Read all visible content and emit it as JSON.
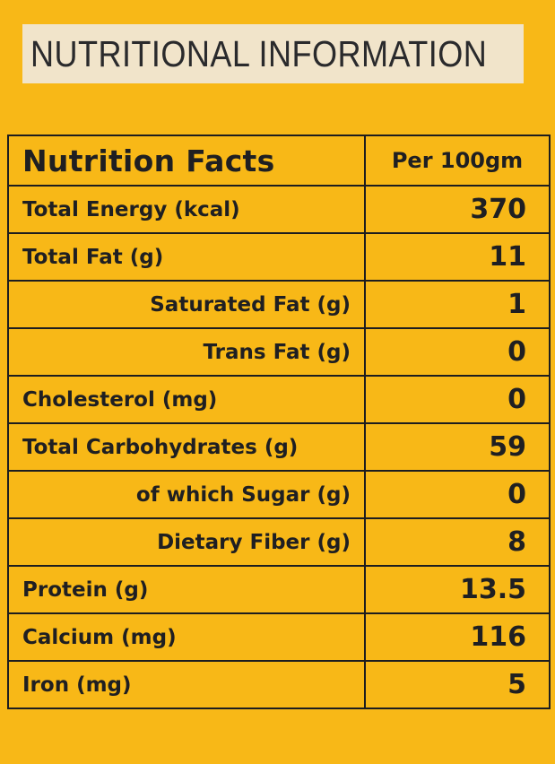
{
  "title": "NUTRITIONAL INFORMATION",
  "table": {
    "header": {
      "label": "Nutrition Facts",
      "value": "Per 100gm"
    },
    "rows": [
      {
        "label": "Total Energy (kcal)",
        "value": "370",
        "indent": false
      },
      {
        "label": "Total Fat (g)",
        "value": "11",
        "indent": false
      },
      {
        "label": "Saturated Fat (g)",
        "value": "1",
        "indent": true
      },
      {
        "label": "Trans Fat (g)",
        "value": "0",
        "indent": true
      },
      {
        "label": "Cholesterol (mg)",
        "value": "0",
        "indent": false
      },
      {
        "label": "Total Carbohydrates (g)",
        "value": "59",
        "indent": false
      },
      {
        "label": "of which Sugar (g)",
        "value": "0",
        "indent": true
      },
      {
        "label": "Dietary Fiber (g)",
        "value": "8",
        "indent": true
      },
      {
        "label": "Protein (g)",
        "value": "13.5",
        "indent": false
      },
      {
        "label": "Calcium (mg)",
        "value": "116",
        "indent": false
      },
      {
        "label": "Iron (mg)",
        "value": "5",
        "indent": false
      }
    ]
  },
  "colors": {
    "background": "#f8b817",
    "banner": "#f1e4ca",
    "text": "#1f1f22",
    "border": "#1d1d1f"
  }
}
